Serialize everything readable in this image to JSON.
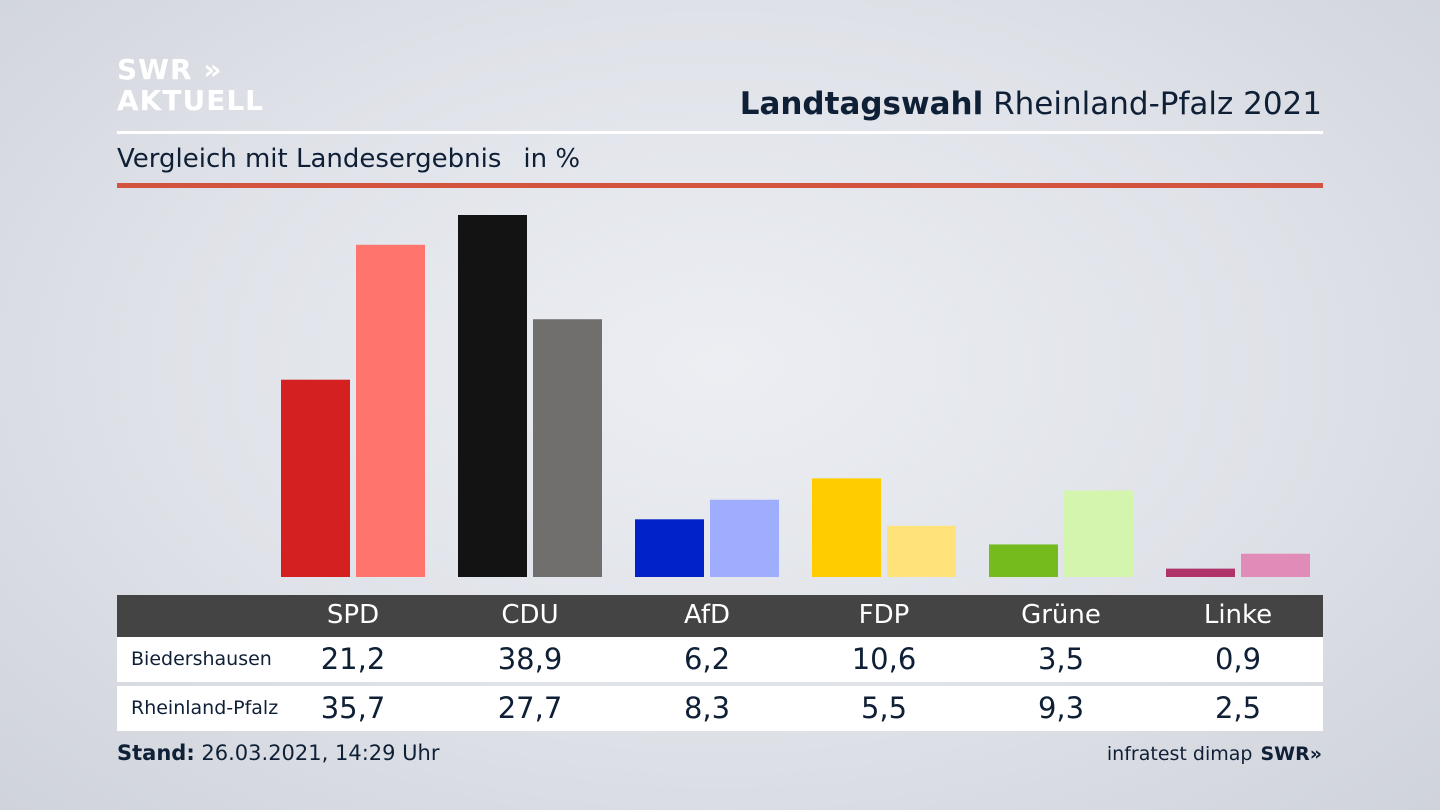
{
  "logo": {
    "line1": "SWR »",
    "line2": "AKTUELL"
  },
  "header": {
    "title_bold": "Landtagswahl",
    "title_rest": " Rheinland-Pfalz 2021"
  },
  "subtitle": {
    "text": "Vergleich mit Landesergebnis",
    "unit": "in %"
  },
  "table": {
    "rows": [
      {
        "label": "Biedershausen",
        "values": [
          "21,2",
          "38,9",
          "6,2",
          "10,6",
          "3,5",
          "0,9"
        ]
      },
      {
        "label": "Rheinland-Pfalz",
        "values": [
          "35,7",
          "27,7",
          "8,3",
          "5,5",
          "9,3",
          "2,5"
        ]
      }
    ]
  },
  "footer": {
    "stand_label": "Stand:",
    "stand_value": " 26.03.2021, 14:29 Uhr",
    "source": "infratest dimap",
    "brand": "SWR»"
  },
  "chart_data": {
    "type": "bar",
    "categories": [
      "SPD",
      "CDU",
      "AfD",
      "FDP",
      "Grüne",
      "Linke"
    ],
    "series": [
      {
        "name": "Biedershausen",
        "values": [
          21.2,
          38.9,
          6.2,
          10.6,
          3.5,
          0.9
        ],
        "colors": [
          "#d42020",
          "#131313",
          "#0022c8",
          "#ffcc00",
          "#74bc1e",
          "#b0336a"
        ]
      },
      {
        "name": "Rheinland-Pfalz",
        "values": [
          35.7,
          27.7,
          8.3,
          5.5,
          9.3,
          2.5
        ],
        "colors": [
          "#ff756e",
          "#706f6e",
          "#9fadff",
          "#ffe27a",
          "#d4f5ad",
          "#e08bb8"
        ]
      }
    ],
    "ylim": [
      0,
      38.9
    ],
    "grid": false,
    "legend": "none"
  }
}
